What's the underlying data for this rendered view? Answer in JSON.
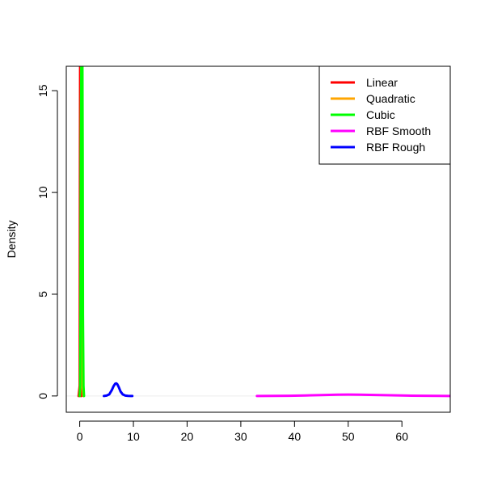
{
  "chart_data": {
    "type": "line",
    "title": "",
    "xlabel": "",
    "ylabel": "Density",
    "xlim": [
      -2.5,
      69
    ],
    "ylim": [
      -0.8,
      16.2
    ],
    "xticks": [
      0,
      10,
      20,
      30,
      40,
      50,
      60
    ],
    "yticks": [
      0,
      5,
      10,
      15
    ],
    "grid": false,
    "legend_position": "top-right",
    "series": [
      {
        "name": "Linear",
        "color": "#ff0000",
        "x": [
          -0.2,
          0.0,
          0.02,
          0.05,
          0.08,
          0.1,
          0.12,
          0.15,
          0.18,
          0.2,
          0.3
        ],
        "y": [
          0,
          0.5,
          4,
          12,
          16.2,
          16.2,
          16.2,
          12,
          4,
          0.5,
          0
        ]
      },
      {
        "name": "Quadratic",
        "color": "#ffa500",
        "x": [
          0.0,
          0.15,
          0.2,
          0.25,
          0.3,
          0.35,
          0.4,
          0.45,
          0.5,
          0.55,
          0.7
        ],
        "y": [
          0,
          0.5,
          4,
          12,
          16.2,
          16.2,
          16.2,
          12,
          4,
          0.5,
          0
        ]
      },
      {
        "name": "Cubic",
        "color": "#00ff00",
        "x": [
          0.0,
          0.1,
          0.15,
          0.2,
          0.3,
          0.4,
          0.5,
          0.55,
          0.6,
          0.7,
          0.8
        ],
        "y": [
          0,
          0.5,
          4,
          12,
          16.2,
          16.2,
          16.2,
          12,
          4,
          0.5,
          0
        ]
      },
      {
        "name": "RBF Smooth",
        "color": "#ff00ff",
        "x": [
          33,
          36,
          39,
          42,
          45,
          48,
          50,
          52,
          55,
          58,
          61,
          64,
          67,
          69
        ],
        "y": [
          0.0,
          0.003,
          0.01,
          0.025,
          0.045,
          0.062,
          0.067,
          0.064,
          0.05,
          0.032,
          0.017,
          0.008,
          0.003,
          0.001
        ]
      },
      {
        "name": "RBF Rough",
        "color": "#0000ff",
        "x": [
          4.5,
          5.0,
          5.5,
          6.0,
          6.3,
          6.6,
          6.8,
          7.0,
          7.3,
          7.6,
          8.0,
          8.5,
          9.0,
          9.5,
          9.8
        ],
        "y": [
          0.0,
          0.02,
          0.08,
          0.3,
          0.48,
          0.6,
          0.62,
          0.58,
          0.42,
          0.22,
          0.08,
          0.02,
          0.005,
          0.0,
          0.0
        ]
      }
    ]
  }
}
